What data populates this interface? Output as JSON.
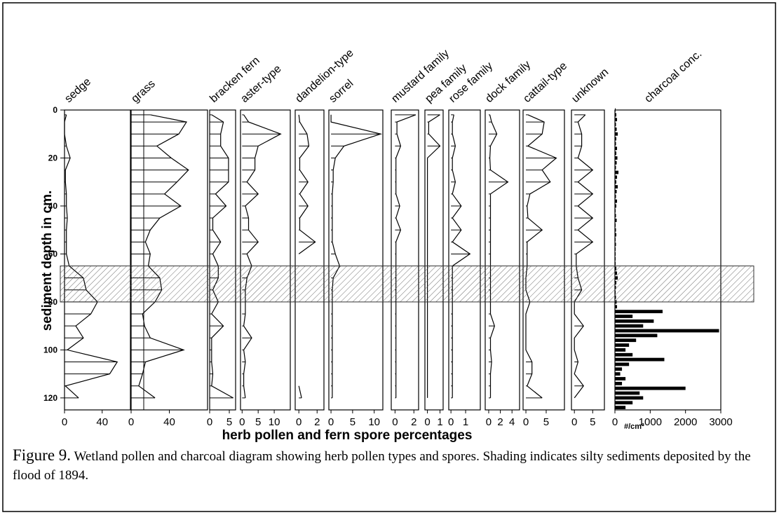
{
  "chart_data": {
    "type": "pollen-diagram",
    "y_label": "sediment depth in cm.",
    "x_label": "herb pollen and fern spore percentages",
    "ylim": [
      0,
      125
    ],
    "yticks": [
      0,
      20,
      40,
      60,
      80,
      100,
      120
    ],
    "shaded_depths": [
      65,
      80
    ],
    "depths": [
      2,
      5,
      10,
      15,
      20,
      25,
      30,
      35,
      40,
      45,
      50,
      55,
      60,
      65,
      70,
      75,
      80,
      85,
      90,
      95,
      100,
      105,
      110,
      115,
      120
    ],
    "panels": [
      {
        "name": "sedge",
        "xlim": [
          0,
          70
        ],
        "xticks": [
          0,
          40
        ],
        "values": [
          2,
          0,
          0,
          2,
          6,
          1,
          1,
          2,
          2,
          3,
          2,
          2,
          2,
          5,
          20,
          23,
          35,
          28,
          12,
          20,
          3,
          56,
          48,
          1,
          15
        ]
      },
      {
        "name": "grass",
        "xlim": [
          0,
          80
        ],
        "xticks": [
          0,
          40
        ],
        "values": [
          20,
          58,
          50,
          27,
          42,
          60,
          48,
          35,
          52,
          30,
          20,
          15,
          20,
          18,
          30,
          32,
          25,
          12,
          14,
          20,
          55,
          15,
          12,
          8,
          25
        ]
      },
      {
        "name": "bracken fern",
        "xlim": [
          0,
          6.6
        ],
        "xticks": [
          0,
          5
        ],
        "values": [
          0.5,
          3.5,
          2.8,
          2.8,
          4.8,
          4.8,
          4.8,
          1.5,
          4.2,
          0.8,
          0.8,
          2.8,
          0.8,
          2.2,
          2.2,
          0.8,
          2.2,
          0.5,
          3.5,
          0.5,
          0.5,
          0.5,
          0.8,
          0.5,
          6
        ]
      },
      {
        "name": "aster-type",
        "xlim": [
          -0.5,
          15
        ],
        "xticks": [
          0,
          5,
          10
        ],
        "values": [
          0.5,
          2,
          12,
          5,
          4,
          4,
          1.5,
          5,
          1,
          2,
          2,
          5,
          1.5,
          3,
          1.5,
          1,
          1,
          1,
          0.5,
          3,
          0.5,
          1,
          0.5,
          0.5,
          1
        ]
      },
      {
        "name": "dandelion-type",
        "xlim": [
          -0.4,
          2.75
        ],
        "xticks": [
          0,
          2
        ],
        "values": [
          0,
          0.1,
          0.9,
          1.1,
          0.1,
          0.1,
          1,
          0.1,
          1,
          0.1,
          0.1,
          1.8,
          0,
          null,
          null,
          null,
          null,
          null,
          null,
          null,
          null,
          null,
          null,
          0,
          0.3
        ]
      },
      {
        "name": "sorrel",
        "xlim": [
          -0.5,
          12
        ],
        "xticks": [
          0,
          5,
          10
        ],
        "values": [
          0,
          0,
          11.5,
          3,
          1,
          0.5,
          0.5,
          0.3,
          0.3,
          0.3,
          0.3,
          0.3,
          1,
          2,
          0.5,
          0.3,
          0.3,
          0.3,
          0.3,
          0.3,
          0.3,
          0.3,
          0.3,
          0.3,
          0.3
        ]
      },
      {
        "name": "mustard family",
        "xlim": [
          -0.4,
          2.5
        ],
        "xticks": [
          0,
          2
        ],
        "values": [
          2.2,
          0.2,
          0.2,
          0.6,
          0.1,
          0.1,
          0.1,
          0.1,
          0.5,
          0.1,
          0.6,
          0.1,
          0.1,
          0.1,
          0.1,
          0.1,
          0.1,
          0.1,
          0.1,
          0.1,
          0.1,
          0.1,
          0.1,
          0.1,
          0.1
        ]
      },
      {
        "name": "pea family",
        "xlim": [
          -0.2,
          1.25
        ],
        "xticks": [
          0,
          1
        ],
        "values": [
          1,
          0.1,
          0.1,
          1,
          0,
          0,
          0,
          0,
          0,
          0,
          0,
          0,
          0,
          0,
          0,
          0,
          0,
          0,
          0,
          0,
          0,
          0,
          0,
          0,
          0
        ]
      },
      {
        "name": "rose family",
        "xlim": [
          -0.15,
          2
        ],
        "xticks": [
          0,
          1
        ],
        "values": [
          0.2,
          0.1,
          0.1,
          0.3,
          0.1,
          0.1,
          0.3,
          0.1,
          0.7,
          0.1,
          0.7,
          0.1,
          1.3,
          0.1,
          0.1,
          0.1,
          0.1,
          0.1,
          0.1,
          0.1,
          0.1,
          0.1,
          0.1,
          0.1,
          0.1
        ]
      },
      {
        "name": "dock family",
        "xlim": [
          -0.6,
          5.3
        ],
        "xticks": [
          0,
          2,
          4
        ],
        "values": [
          0.2,
          0.5,
          1.4,
          0.3,
          0.2,
          0.3,
          3.3,
          0.3,
          0.3,
          0.3,
          0.3,
          0.3,
          0.3,
          0.3,
          0.3,
          0.3,
          0.3,
          0.3,
          1,
          0.3,
          0.3,
          0.5,
          0.3,
          0.3,
          0.3
        ]
      },
      {
        "name": "cattail-type",
        "xlim": [
          -0.7,
          9.5
        ],
        "xticks": [
          0,
          5
        ],
        "values": [
          0.5,
          4.5,
          4,
          0.5,
          7.5,
          4,
          6,
          1,
          0.3,
          0.5,
          4,
          0.3,
          0.3,
          0.3,
          0,
          0,
          1,
          0,
          0,
          0,
          0,
          1.5,
          1.5,
          0.3,
          4
        ]
      },
      {
        "name": "unknown",
        "xlim": [
          -0.8,
          8.2
        ],
        "xticks": [
          0,
          5
        ],
        "values": [
          3,
          1,
          2,
          2,
          1,
          5,
          1,
          5,
          1,
          5,
          1,
          5,
          0.5,
          0.5,
          1,
          2,
          0,
          0,
          2.5,
          0,
          0,
          1,
          0,
          2.5,
          0
        ]
      }
    ],
    "charcoal": {
      "name": "charcoal conc.",
      "unit": "#/cm³",
      "xlim": [
        0,
        3000
      ],
      "xticks": [
        0,
        1000,
        2000,
        3000
      ],
      "depths": [
        0,
        2,
        4,
        6,
        8,
        10,
        12,
        14,
        16,
        18,
        20,
        22,
        24,
        26,
        28,
        30,
        32,
        34,
        36,
        38,
        40,
        42,
        44,
        46,
        48,
        50,
        52,
        54,
        56,
        58,
        60,
        62,
        64,
        66,
        68,
        70,
        72,
        74,
        76,
        78,
        80,
        82,
        84,
        86,
        88,
        90,
        92,
        94,
        96,
        98,
        100,
        102,
        104,
        106,
        108,
        110,
        112,
        114,
        116,
        118,
        120,
        122,
        124
      ],
      "values": [
        20,
        40,
        60,
        30,
        50,
        80,
        40,
        30,
        60,
        40,
        70,
        50,
        30,
        100,
        60,
        40,
        80,
        50,
        30,
        60,
        40,
        20,
        30,
        50,
        20,
        30,
        40,
        20,
        30,
        20,
        20,
        20,
        20,
        40,
        60,
        80,
        40,
        30,
        20,
        30,
        50,
        60,
        1350,
        500,
        1100,
        800,
        2950,
        1200,
        600,
        400,
        300,
        500,
        1400,
        400,
        200,
        150,
        300,
        200,
        2000,
        700,
        800,
        500,
        300
      ]
    }
  },
  "caption": {
    "label": "Figure 9.",
    "text": "Wetland pollen and charcoal diagram showing herb pollen types and spores. Shading indicates silty sediments deposited by the flood of 1894."
  }
}
